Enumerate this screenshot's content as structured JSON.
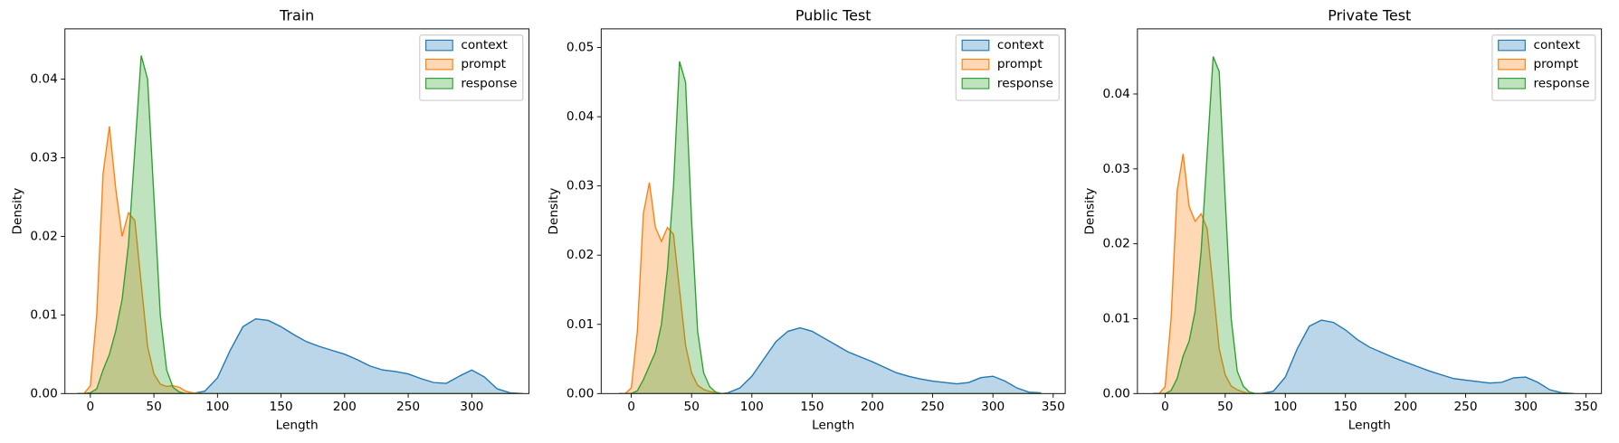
{
  "chart_data": [
    {
      "type": "area",
      "title": "Train",
      "xlabel": "Length",
      "ylabel": "Density",
      "legend": "upper right",
      "x": [
        -10,
        -5,
        0,
        5,
        10,
        15,
        20,
        25,
        30,
        35,
        40,
        45,
        50,
        55,
        60,
        65,
        70,
        75,
        80,
        90,
        100,
        110,
        120,
        130,
        140,
        150,
        160,
        170,
        180,
        190,
        200,
        210,
        220,
        230,
        240,
        250,
        260,
        270,
        280,
        290,
        300,
        310,
        320,
        330,
        340
      ],
      "xlim": [
        -20,
        345
      ],
      "ylim": [
        0,
        0.0464
      ],
      "xticks": [
        0,
        50,
        100,
        150,
        200,
        250,
        300
      ],
      "yticks": [
        {
          "value": 0,
          "label": "0.00"
        },
        {
          "value": 0.01,
          "label": "0.01"
        },
        {
          "value": 0.02,
          "label": "0.02"
        },
        {
          "value": 0.03,
          "label": "0.03"
        },
        {
          "value": 0.04,
          "label": "0.04"
        }
      ],
      "series": [
        {
          "name": "context",
          "color": "#1f77b4",
          "values": [
            0,
            0,
            0,
            0,
            0,
            0,
            0,
            0,
            0,
            0,
            0,
            0,
            0,
            0,
            0,
            0,
            0,
            0,
            0,
            0.0003,
            0.002,
            0.0055,
            0.0085,
            0.0095,
            0.0093,
            0.0085,
            0.0075,
            0.0066,
            0.006,
            0.0055,
            0.005,
            0.0043,
            0.0035,
            0.003,
            0.0028,
            0.0025,
            0.0019,
            0.0014,
            0.0013,
            0.0022,
            0.003,
            0.0021,
            0.0006,
            0.0001,
            0
          ]
        },
        {
          "name": "prompt",
          "color": "#ff7f0e",
          "values": [
            0,
            0,
            0.001,
            0.01,
            0.028,
            0.034,
            0.026,
            0.02,
            0.023,
            0.022,
            0.014,
            0.006,
            0.0025,
            0.0012,
            0.0009,
            0.001,
            0.0008,
            0.0003,
            0.0001,
            0,
            0,
            0,
            0,
            0,
            0,
            0,
            0,
            0,
            0,
            0,
            0,
            0,
            0,
            0,
            0,
            0,
            0,
            0,
            0,
            0,
            0,
            0,
            0,
            0,
            0
          ]
        },
        {
          "name": "response",
          "color": "#2ca02c",
          "values": [
            0,
            0,
            0.0001,
            0.0006,
            0.003,
            0.005,
            0.008,
            0.012,
            0.019,
            0.031,
            0.043,
            0.04,
            0.025,
            0.01,
            0.003,
            0.0008,
            0.0002,
            0,
            0,
            0,
            0,
            0,
            0,
            0,
            0,
            0,
            0,
            0,
            0,
            0,
            0,
            0,
            0,
            0,
            0,
            0,
            0,
            0,
            0,
            0,
            0,
            0,
            0,
            0,
            0
          ]
        }
      ]
    },
    {
      "type": "area",
      "title": "Public Test",
      "xlabel": "Length",
      "ylabel": "Density",
      "legend": "upper right",
      "x": [
        -10,
        -5,
        0,
        5,
        10,
        15,
        20,
        25,
        30,
        35,
        40,
        45,
        50,
        55,
        60,
        65,
        70,
        75,
        80,
        90,
        100,
        110,
        120,
        130,
        140,
        150,
        160,
        170,
        180,
        190,
        200,
        210,
        220,
        230,
        240,
        250,
        260,
        270,
        280,
        290,
        300,
        310,
        320,
        330,
        340
      ],
      "xlim": [
        -25,
        360
      ],
      "ylim": [
        0,
        0.0527
      ],
      "xticks": [
        0,
        50,
        100,
        150,
        200,
        250,
        300,
        350
      ],
      "yticks": [
        {
          "value": 0,
          "label": "0.00"
        },
        {
          "value": 0.01,
          "label": "0.01"
        },
        {
          "value": 0.02,
          "label": "0.02"
        },
        {
          "value": 0.03,
          "label": "0.03"
        },
        {
          "value": 0.04,
          "label": "0.04"
        },
        {
          "value": 0.05,
          "label": "0.05"
        }
      ],
      "series": [
        {
          "name": "context",
          "color": "#1f77b4",
          "values": [
            0,
            0,
            0,
            0,
            0,
            0,
            0,
            0,
            0,
            0,
            0,
            0,
            0,
            0,
            0,
            0,
            0,
            0,
            0.0001,
            0.0008,
            0.0025,
            0.005,
            0.0075,
            0.009,
            0.0095,
            0.009,
            0.008,
            0.007,
            0.006,
            0.0053,
            0.0046,
            0.0038,
            0.003,
            0.0025,
            0.0021,
            0.0018,
            0.0016,
            0.0014,
            0.0016,
            0.0023,
            0.0025,
            0.0018,
            0.0008,
            0.0002,
            0.0001
          ]
        },
        {
          "name": "prompt",
          "color": "#ff7f0e",
          "values": [
            0,
            0,
            0.0008,
            0.009,
            0.026,
            0.0305,
            0.024,
            0.022,
            0.024,
            0.023,
            0.015,
            0.007,
            0.003,
            0.0012,
            0.0006,
            0.0003,
            0.0001,
            0,
            0,
            0,
            0,
            0,
            0,
            0,
            0,
            0,
            0,
            0,
            0,
            0,
            0,
            0,
            0,
            0,
            0,
            0,
            0,
            0,
            0,
            0,
            0,
            0,
            0,
            0,
            0
          ]
        },
        {
          "name": "response",
          "color": "#2ca02c",
          "values": [
            0,
            0,
            0,
            0.0004,
            0.002,
            0.004,
            0.006,
            0.01,
            0.018,
            0.03,
            0.048,
            0.045,
            0.025,
            0.009,
            0.003,
            0.001,
            0.0002,
            0,
            0,
            0,
            0,
            0,
            0,
            0,
            0,
            0,
            0,
            0,
            0,
            0,
            0,
            0,
            0,
            0,
            0,
            0,
            0,
            0,
            0,
            0,
            0,
            0,
            0,
            0,
            0
          ]
        }
      ]
    },
    {
      "type": "area",
      "title": "Private Test",
      "xlabel": "Length",
      "ylabel": "Density",
      "legend": "upper right",
      "x": [
        -10,
        -5,
        0,
        5,
        10,
        15,
        20,
        25,
        30,
        35,
        40,
        45,
        50,
        55,
        60,
        65,
        70,
        75,
        80,
        90,
        100,
        110,
        120,
        130,
        140,
        150,
        160,
        170,
        180,
        190,
        200,
        210,
        220,
        230,
        240,
        250,
        260,
        270,
        280,
        290,
        300,
        310,
        320,
        330,
        340
      ],
      "xlim": [
        -23,
        363
      ],
      "ylim": [
        0,
        0.0487
      ],
      "xticks": [
        0,
        50,
        100,
        150,
        200,
        250,
        300,
        350
      ],
      "yticks": [
        {
          "value": 0,
          "label": "0.00"
        },
        {
          "value": 0.01,
          "label": "0.01"
        },
        {
          "value": 0.02,
          "label": "0.02"
        },
        {
          "value": 0.03,
          "label": "0.03"
        },
        {
          "value": 0.04,
          "label": "0.04"
        }
      ],
      "series": [
        {
          "name": "context",
          "color": "#1f77b4",
          "values": [
            0,
            0,
            0,
            0,
            0,
            0,
            0,
            0,
            0,
            0,
            0,
            0,
            0,
            0,
            0,
            0,
            0,
            0,
            0,
            0.0003,
            0.0022,
            0.006,
            0.009,
            0.0098,
            0.0095,
            0.0085,
            0.0072,
            0.0062,
            0.0055,
            0.0048,
            0.0042,
            0.0036,
            0.003,
            0.0025,
            0.002,
            0.0018,
            0.0016,
            0.0014,
            0.0015,
            0.0021,
            0.0022,
            0.0015,
            0.0005,
            0.0001,
            0
          ]
        },
        {
          "name": "prompt",
          "color": "#ff7f0e",
          "values": [
            0,
            0,
            0.0009,
            0.01,
            0.027,
            0.032,
            0.025,
            0.023,
            0.024,
            0.022,
            0.014,
            0.006,
            0.0025,
            0.001,
            0.0005,
            0.0002,
            0,
            0,
            0,
            0,
            0,
            0,
            0,
            0,
            0,
            0,
            0,
            0,
            0,
            0,
            0,
            0,
            0,
            0,
            0,
            0,
            0,
            0,
            0,
            0,
            0,
            0,
            0,
            0,
            0
          ]
        },
        {
          "name": "response",
          "color": "#2ca02c",
          "values": [
            0,
            0,
            0,
            0.0004,
            0.002,
            0.005,
            0.007,
            0.011,
            0.019,
            0.032,
            0.045,
            0.043,
            0.026,
            0.01,
            0.003,
            0.001,
            0.0002,
            0,
            0,
            0,
            0,
            0,
            0,
            0,
            0,
            0,
            0,
            0,
            0,
            0,
            0,
            0,
            0,
            0,
            0,
            0,
            0,
            0,
            0,
            0,
            0,
            0,
            0,
            0,
            0
          ]
        }
      ]
    }
  ]
}
